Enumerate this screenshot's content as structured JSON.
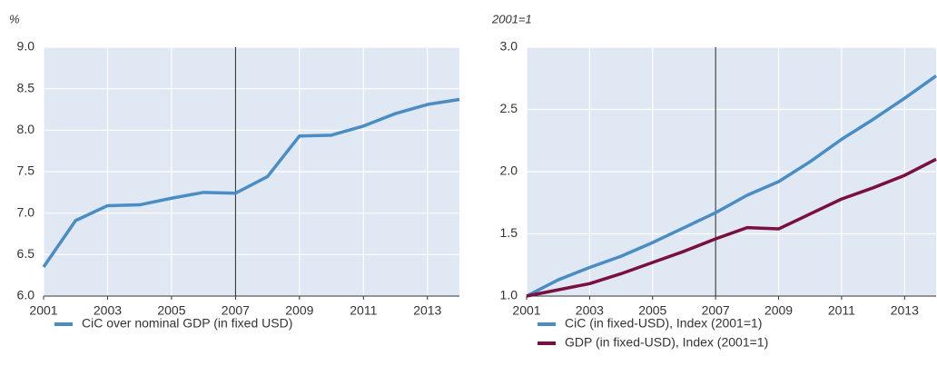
{
  "chart_data": [
    {
      "type": "line",
      "y_unit": "%",
      "x": [
        2001,
        2002,
        2003,
        2004,
        2005,
        2006,
        2007,
        2008,
        2009,
        2010,
        2011,
        2012,
        2013,
        2014
      ],
      "series": [
        {
          "name": "CiC over nominal GDP (in fixed USD)",
          "color": "#4a8cc4",
          "values": [
            6.35,
            6.91,
            7.09,
            7.1,
            7.18,
            7.25,
            7.24,
            7.44,
            7.93,
            7.94,
            8.05,
            8.2,
            8.31,
            8.37
          ]
        }
      ],
      "xlim": [
        2001,
        2014
      ],
      "xticks": [
        2001,
        2003,
        2005,
        2007,
        2009,
        2011,
        2013
      ],
      "ylim": [
        6,
        9
      ],
      "yticks": [
        {
          "value": 6,
          "label": "6.0"
        },
        {
          "value": 6.5,
          "label": "6.5"
        },
        {
          "value": 7,
          "label": "7.0"
        },
        {
          "value": 7.5,
          "label": "7.5"
        },
        {
          "value": 8,
          "label": "8.0"
        },
        {
          "value": 8.5,
          "label": "8.5"
        },
        {
          "value": 9,
          "label": "9.0"
        }
      ],
      "vline": 2007,
      "grid": true
    },
    {
      "type": "line",
      "y_unit": "2001=1",
      "x": [
        2001,
        2002,
        2003,
        2004,
        2005,
        2006,
        2007,
        2008,
        2009,
        2010,
        2011,
        2012,
        2013,
        2014
      ],
      "series": [
        {
          "name": "CiC (in fixed-USD), Index (2001=1)",
          "color": "#4a8cc4",
          "values": [
            1.0,
            1.13,
            1.23,
            1.32,
            1.43,
            1.55,
            1.67,
            1.81,
            1.92,
            2.08,
            2.26,
            2.42,
            2.59,
            2.77
          ]
        },
        {
          "name": "GDP (in fixed-USD), Index (2001=1)",
          "color": "#7a1040",
          "values": [
            1.0,
            1.05,
            1.1,
            1.18,
            1.27,
            1.36,
            1.46,
            1.55,
            1.54,
            1.66,
            1.78,
            1.87,
            1.97,
            2.1
          ]
        }
      ],
      "xlim": [
        2001,
        2014
      ],
      "xticks": [
        2001,
        2003,
        2005,
        2007,
        2009,
        2011,
        2013
      ],
      "ylim": [
        1,
        3
      ],
      "yticks": [
        {
          "value": 1,
          "label": "1.0"
        },
        {
          "value": 1.5,
          "label": "1.5"
        },
        {
          "value": 2,
          "label": "2.0"
        },
        {
          "value": 2.5,
          "label": "2.5"
        },
        {
          "value": 3,
          "label": "3.0"
        }
      ],
      "vline": 2007,
      "grid": true
    }
  ]
}
